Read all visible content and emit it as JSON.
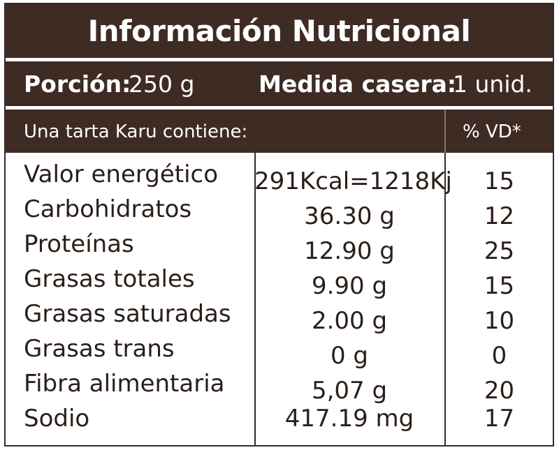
{
  "title": "Información Nutricional",
  "portion": {
    "label": "Porción:",
    "value": "250 g",
    "household_label": "Medida casera:",
    "household_value": "1 unid."
  },
  "subheader": {
    "contains": "Una tarta Karu contiene:",
    "vd": "% VD*"
  },
  "rows": [
    {
      "nutrient": "Valor energético",
      "amount": "291Kcal=1218Kj",
      "vd": "15"
    },
    {
      "nutrient": "Carbohidratos",
      "amount": "36.30 g",
      "vd": "12"
    },
    {
      "nutrient": "Proteínas",
      "amount": "12.90 g",
      "vd": "25"
    },
    {
      "nutrient": "Grasas totales",
      "amount": "9.90 g",
      "vd": "15"
    },
    {
      "nutrient": "Grasas saturadas",
      "amount": "2.00 g",
      "vd": "10"
    },
    {
      "nutrient": "Grasas trans",
      "amount": "0 g",
      "vd": "0"
    },
    {
      "nutrient": "Fibra alimentaria",
      "amount": "5,07 g",
      "vd": "20"
    },
    {
      "nutrient": "Sodio",
      "amount": "417.19 mg",
      "vd": "17"
    }
  ],
  "colors": {
    "header_bg": "#3e2b23",
    "text": "#2b1e19"
  }
}
